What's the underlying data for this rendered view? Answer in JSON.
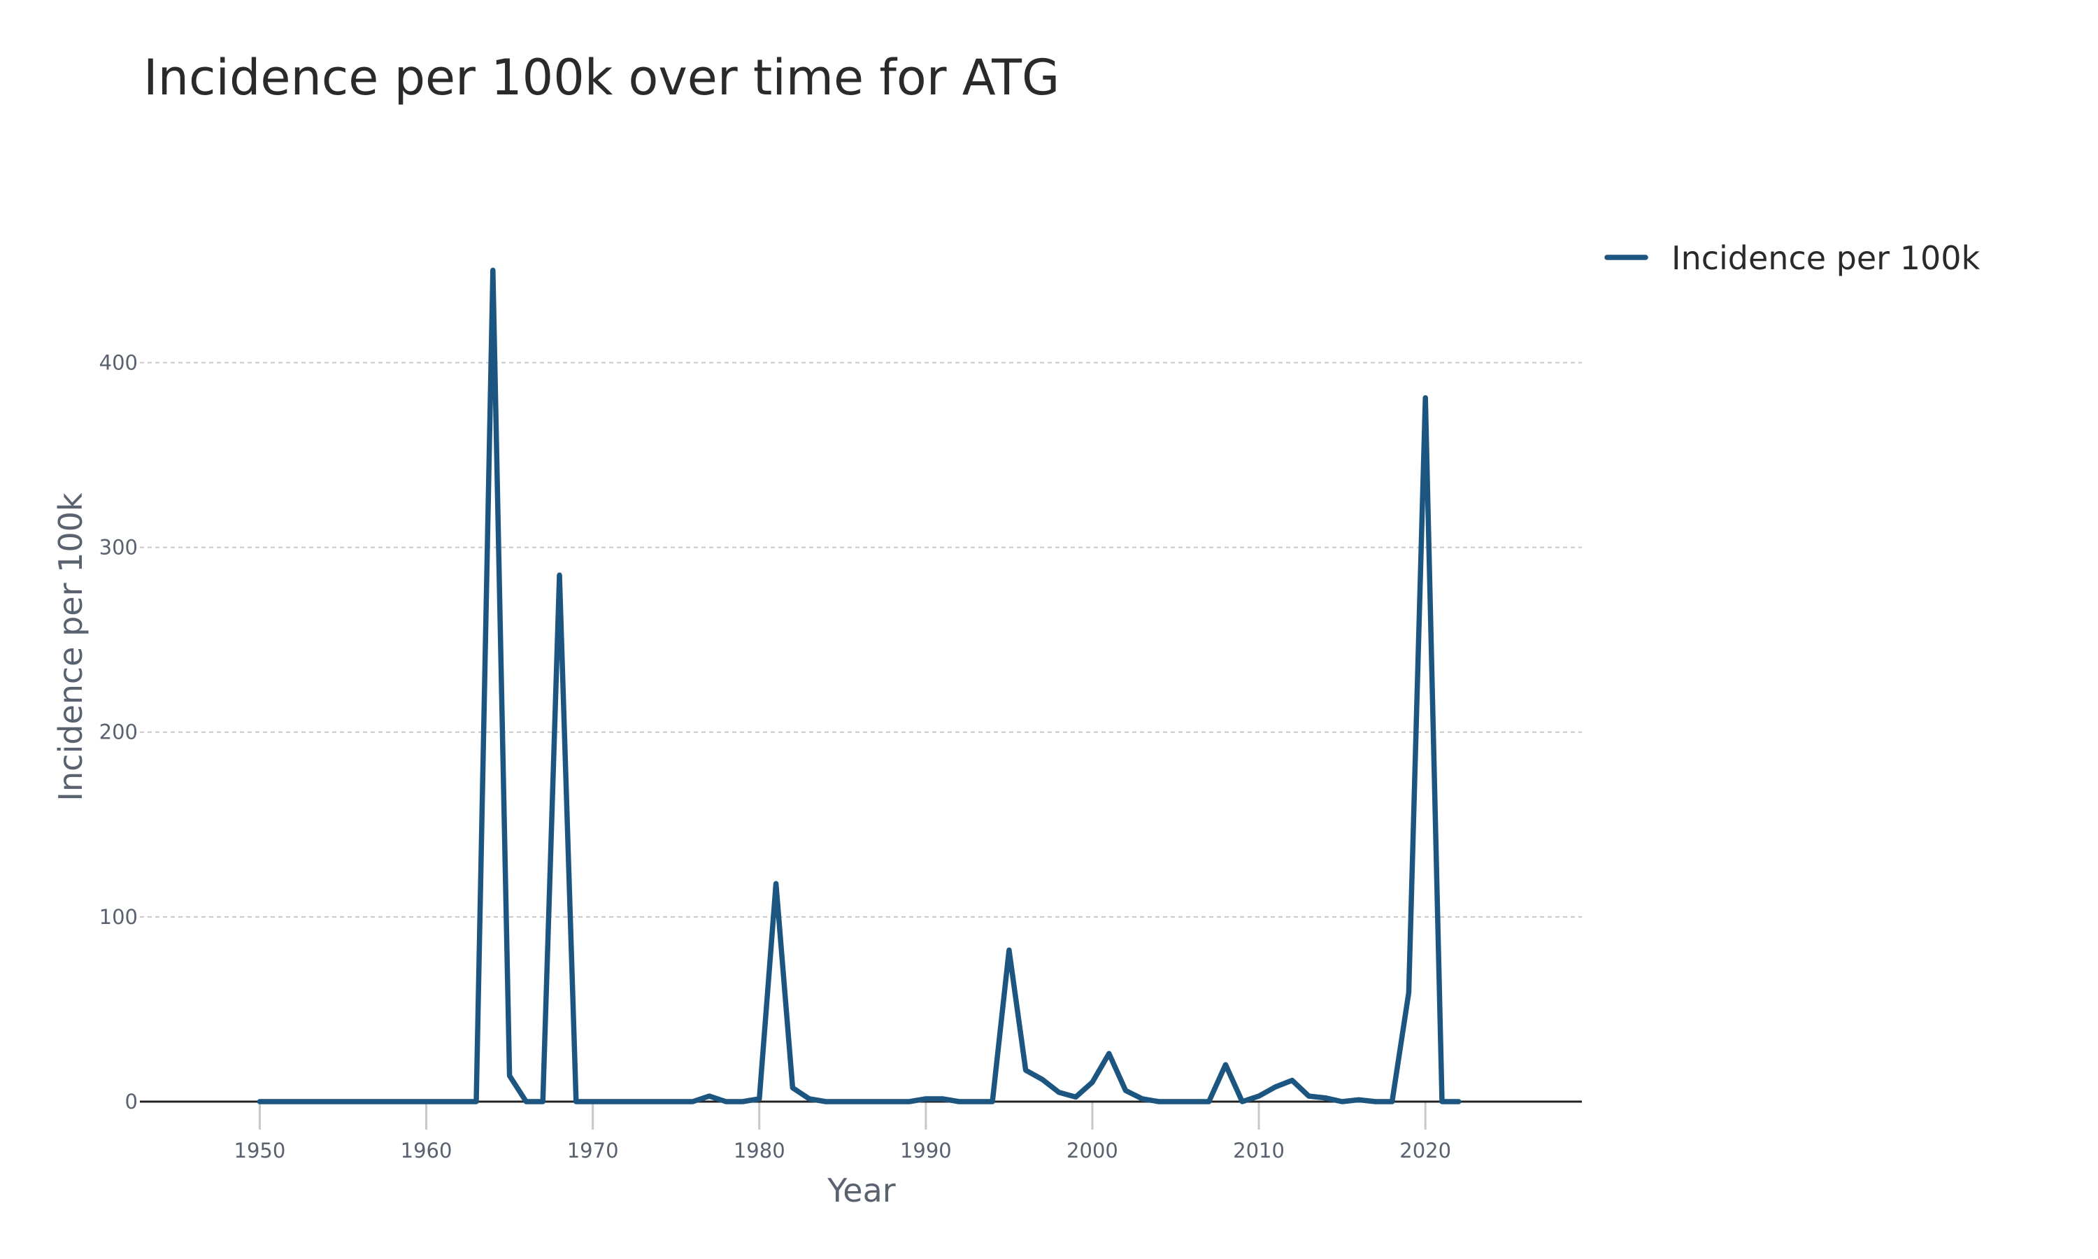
{
  "chart_data": {
    "type": "line",
    "title": "Incidence per 100k over time for ATG",
    "xlabel": "Year",
    "ylabel": "Incidence per 100k",
    "xlim": [
      1942.8,
      2029.4
    ],
    "ylim": [
      0,
      460
    ],
    "x_ticks": [
      1950,
      1960,
      1970,
      1980,
      1990,
      2000,
      2010,
      2020
    ],
    "y_ticks": [
      0,
      100,
      200,
      300,
      400
    ],
    "grid": "y-dashed",
    "legend_position": "top-right",
    "colors": {
      "line": "#1c5580",
      "grid": "#c8c8c8",
      "zeroline": "#222222",
      "tick": "#5a6270"
    },
    "series": [
      {
        "name": "Incidence per 100k",
        "x": [
          1950,
          1951,
          1952,
          1953,
          1954,
          1955,
          1956,
          1957,
          1958,
          1959,
          1960,
          1961,
          1962,
          1963,
          1964,
          1965,
          1966,
          1967,
          1968,
          1969,
          1970,
          1971,
          1972,
          1973,
          1974,
          1975,
          1976,
          1977,
          1978,
          1979,
          1980,
          1981,
          1982,
          1983,
          1984,
          1985,
          1986,
          1987,
          1988,
          1989,
          1990,
          1991,
          1992,
          1993,
          1994,
          1995,
          1996,
          1997,
          1998,
          1999,
          2000,
          2001,
          2002,
          2003,
          2004,
          2005,
          2006,
          2007,
          2008,
          2009,
          2010,
          2011,
          2012,
          2013,
          2014,
          2015,
          2016,
          2017,
          2018,
          2019,
          2020,
          2021,
          2022
        ],
        "values": [
          0,
          0,
          0,
          0,
          0,
          0,
          0,
          0,
          0,
          0,
          0,
          0,
          0,
          0,
          450,
          14,
          0,
          0,
          285,
          0,
          0,
          0,
          0,
          0,
          0,
          0,
          0,
          3,
          0,
          0,
          1.5,
          118,
          7.5,
          1.5,
          0,
          0,
          0,
          0,
          0,
          0,
          1.5,
          1.5,
          0,
          0,
          0,
          82,
          17,
          12,
          5,
          2.5,
          10.5,
          26,
          6,
          1.5,
          0,
          0,
          0,
          0,
          20,
          0,
          3,
          8,
          11.5,
          3,
          2,
          0,
          1,
          0,
          0,
          59,
          381,
          0,
          0
        ]
      }
    ]
  }
}
